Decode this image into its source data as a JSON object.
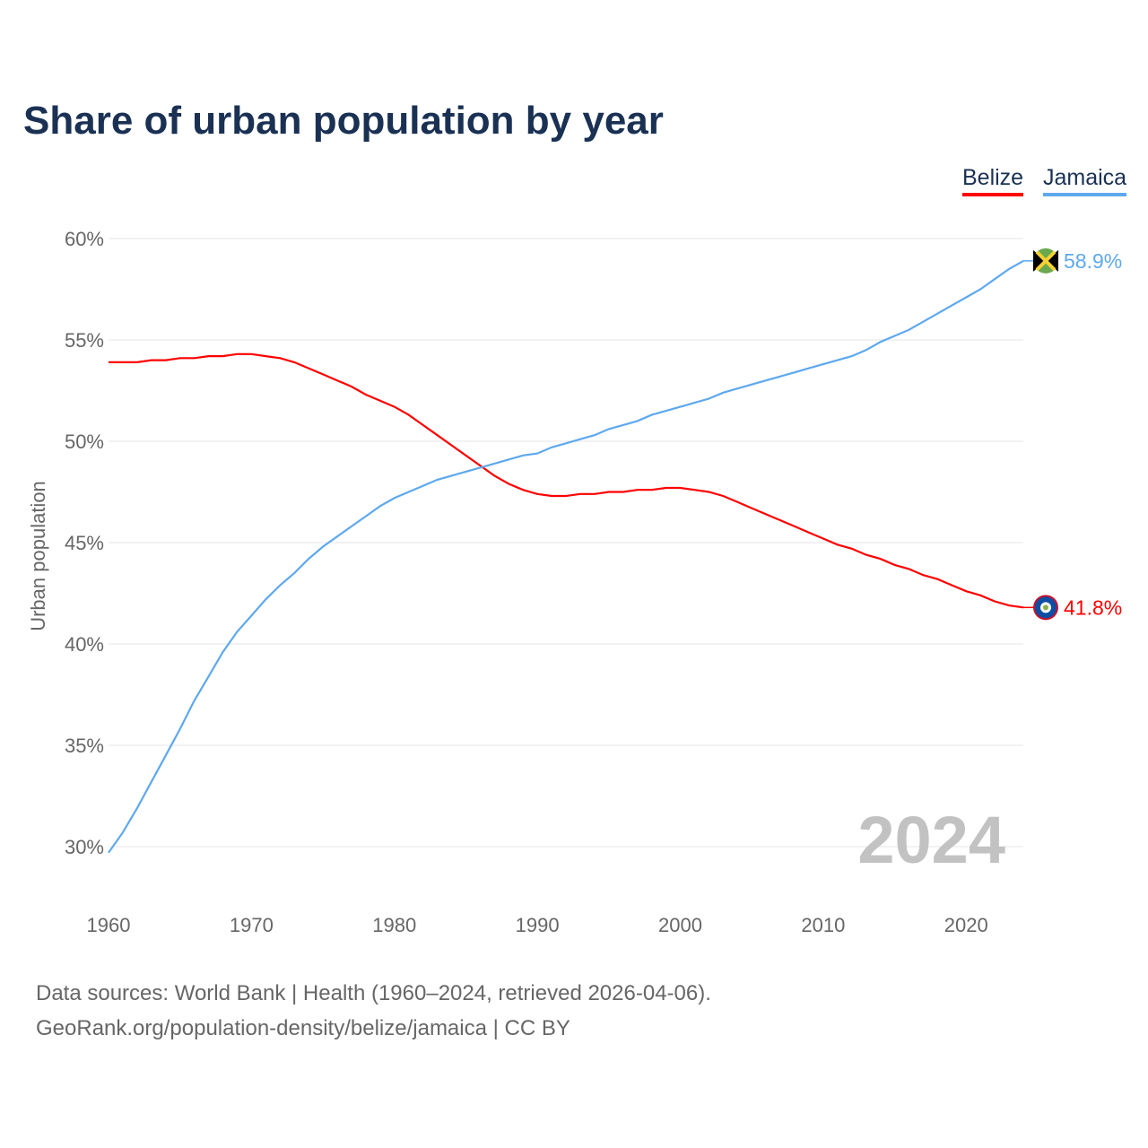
{
  "chart_data": {
    "type": "line",
    "title": "Share of urban population by year",
    "ylabel": "Urban population",
    "xlabel": "",
    "xlim": [
      1960,
      2024
    ],
    "ylim": [
      30,
      60
    ],
    "x_ticks": [
      "1960",
      "1970",
      "1980",
      "1990",
      "2000",
      "2010",
      "2020"
    ],
    "y_ticks": [
      "30%",
      "35%",
      "40%",
      "45%",
      "50%",
      "55%",
      "60%"
    ],
    "grid": true,
    "legend_position": "top-right",
    "year_label": "2024",
    "x": [
      1960,
      1961,
      1962,
      1963,
      1964,
      1965,
      1966,
      1967,
      1968,
      1969,
      1970,
      1971,
      1972,
      1973,
      1974,
      1975,
      1976,
      1977,
      1978,
      1979,
      1980,
      1981,
      1982,
      1983,
      1984,
      1985,
      1986,
      1987,
      1988,
      1989,
      1990,
      1991,
      1992,
      1993,
      1994,
      1995,
      1996,
      1997,
      1998,
      1999,
      2000,
      2001,
      2002,
      2003,
      2004,
      2005,
      2006,
      2007,
      2008,
      2009,
      2010,
      2011,
      2012,
      2013,
      2014,
      2015,
      2016,
      2017,
      2018,
      2019,
      2020,
      2021,
      2022,
      2023,
      2024
    ],
    "series": [
      {
        "name": "Belize",
        "color": "#ff0000",
        "end_label": "41.8%",
        "flag": "belize-flag",
        "values": [
          53.9,
          53.9,
          53.9,
          54.0,
          54.0,
          54.1,
          54.1,
          54.2,
          54.2,
          54.3,
          54.3,
          54.2,
          54.1,
          53.9,
          53.6,
          53.3,
          53.0,
          52.7,
          52.3,
          52.0,
          51.7,
          51.3,
          50.8,
          50.3,
          49.8,
          49.3,
          48.8,
          48.3,
          47.9,
          47.6,
          47.4,
          47.3,
          47.3,
          47.4,
          47.4,
          47.5,
          47.5,
          47.6,
          47.6,
          47.7,
          47.7,
          47.6,
          47.5,
          47.3,
          47.0,
          46.7,
          46.4,
          46.1,
          45.8,
          45.5,
          45.2,
          44.9,
          44.7,
          44.4,
          44.2,
          43.9,
          43.7,
          43.4,
          43.2,
          42.9,
          42.6,
          42.4,
          42.1,
          41.9,
          41.8
        ]
      },
      {
        "name": "Jamaica",
        "color": "#5ea8ee",
        "end_label": "58.9%",
        "flag": "jamaica-flag",
        "values": [
          29.7,
          30.7,
          31.9,
          33.2,
          34.5,
          35.8,
          37.2,
          38.4,
          39.6,
          40.6,
          41.4,
          42.2,
          42.9,
          43.5,
          44.2,
          44.8,
          45.3,
          45.8,
          46.3,
          46.8,
          47.2,
          47.5,
          47.8,
          48.1,
          48.3,
          48.5,
          48.7,
          48.9,
          49.1,
          49.3,
          49.4,
          49.7,
          49.9,
          50.1,
          50.3,
          50.6,
          50.8,
          51.0,
          51.3,
          51.5,
          51.7,
          51.9,
          52.1,
          52.4,
          52.6,
          52.8,
          53.0,
          53.2,
          53.4,
          53.6,
          53.8,
          54.0,
          54.2,
          54.5,
          54.9,
          55.2,
          55.5,
          55.9,
          56.3,
          56.7,
          57.1,
          57.5,
          58.0,
          58.5,
          58.9
        ]
      }
    ]
  },
  "footer": {
    "line1": "Data sources: World Bank | Health (1960–2024, retrieved 2026-04-06).",
    "line2": "GeoRank.org/population-density/belize/jamaica | CC BY"
  }
}
